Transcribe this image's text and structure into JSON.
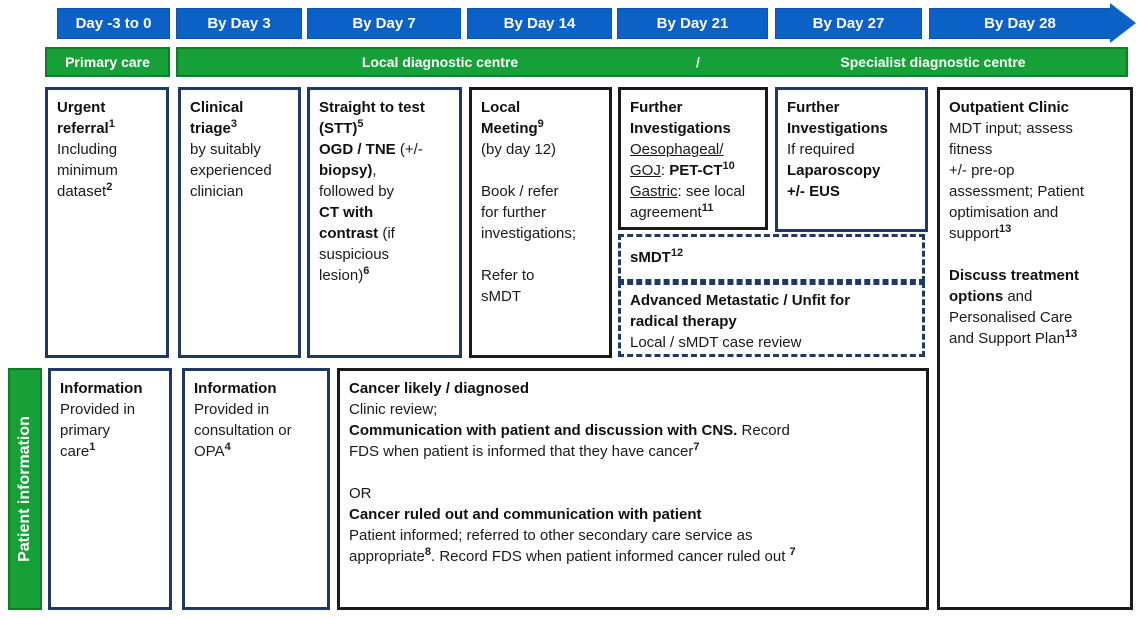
{
  "colors": {
    "timeline_blue": "#0b61c6",
    "setting_green": "#18a038",
    "navy_border": "#1f3864",
    "black_border": "#1a1a1a"
  },
  "timeline": {
    "days": [
      "Day -3 to 0",
      "By Day 3",
      "By Day 7",
      "By Day 14",
      "By Day 21",
      "By Day 27",
      "By Day 28"
    ]
  },
  "settings": {
    "primary": "Primary care",
    "local": "Local diagnostic centre",
    "slash": "/",
    "specialist": "Specialist diagnostic centre"
  },
  "patient_information_label": "Patient information",
  "boxes": {
    "urgent_referral": {
      "segments": [
        {
          "t": "Urgent\nreferral",
          "b": true
        },
        {
          "t": "1",
          "sup": true
        },
        {
          "t": "\nIncluding\nminimum\ndataset"
        },
        {
          "t": "2",
          "sup": true
        }
      ]
    },
    "clinical_triage": {
      "segments": [
        {
          "t": "Clinical\ntriage",
          "b": true
        },
        {
          "t": "3",
          "sup": true
        },
        {
          "t": "\nby suitably\nexperienced\nclinician"
        }
      ]
    },
    "straight_to_test": {
      "segments": [
        {
          "t": "Straight to test\n(STT)",
          "b": true
        },
        {
          "t": "5",
          "sup": true
        },
        {
          "t": "\n"
        },
        {
          "t": "OGD / TNE",
          "b": true
        },
        {
          "t": " (+/-\n"
        },
        {
          "t": "biopsy)",
          "b": true
        },
        {
          "t": ",\nfollowed by\n"
        },
        {
          "t": "CT with\ncontrast",
          "b": true
        },
        {
          "t": " (if\nsuspicious\nlesion)"
        },
        {
          "t": "6",
          "sup": true
        }
      ]
    },
    "local_meeting": {
      "segments": [
        {
          "t": "Local\nMeeting",
          "b": true
        },
        {
          "t": "9",
          "sup": true
        },
        {
          "t": "\n(by day 12)\n\nBook / refer\nfor further\ninvestigations;\n\nRefer to\nsMDT"
        }
      ]
    },
    "further_investigations_og": {
      "segments": [
        {
          "t": "Further\nInvestigations",
          "b": true
        },
        {
          "t": "\n"
        },
        {
          "t": "Oesophageal/",
          "u": true
        },
        {
          "t": "\n"
        },
        {
          "t": "GOJ",
          "u": true
        },
        {
          "t": ": "
        },
        {
          "t": "PET-CT",
          "b": true
        },
        {
          "t": "10",
          "sup": true
        },
        {
          "t": "\n"
        },
        {
          "t": "Gastric",
          "u": true
        },
        {
          "t": ": see local\nagreement"
        },
        {
          "t": "11",
          "sup": true
        }
      ]
    },
    "further_investigations_lap": {
      "segments": [
        {
          "t": "Further\nInvestigations",
          "b": true
        },
        {
          "t": "\nIf required\n"
        },
        {
          "t": "Laparoscopy\n+/- EUS",
          "b": true
        }
      ]
    },
    "smdt": {
      "segments": [
        {
          "t": "sMDT",
          "b": true
        },
        {
          "t": "12",
          "sup": true
        }
      ]
    },
    "advanced_metastatic": {
      "segments": [
        {
          "t": "Advanced Metastatic / Unfit for\nradical therapy",
          "b": true
        },
        {
          "t": "\nLocal / sMDT case review"
        }
      ]
    },
    "outpatient_clinic": {
      "segments": [
        {
          "t": "Outpatient Clinic",
          "b": true
        },
        {
          "t": "\nMDT input; assess\nfitness\n+/- pre-op\nassessment; Patient\noptimisation and\nsupport"
        },
        {
          "t": "13",
          "sup": true
        },
        {
          "t": "\n\n"
        },
        {
          "t": "Discuss treatment\noptions",
          "b": true
        },
        {
          "t": " and\nPersonalised Care\nand Support Plan"
        },
        {
          "t": "13",
          "sup": true
        }
      ]
    },
    "information_primary": {
      "segments": [
        {
          "t": "Information",
          "b": true
        },
        {
          "t": "\nProvided in\nprimary\ncare"
        },
        {
          "t": "1",
          "sup": true
        }
      ]
    },
    "information_opa": {
      "segments": [
        {
          "t": "Information",
          "b": true
        },
        {
          "t": "\nProvided in\nconsultation or\nOPA"
        },
        {
          "t": "4",
          "sup": true
        }
      ]
    },
    "cancer_communication": {
      "segments": [
        {
          "t": "Cancer likely / diagnosed",
          "b": true
        },
        {
          "t": "\nClinic review;\n"
        },
        {
          "t": "Communication with patient and discussion with CNS.",
          "b": true
        },
        {
          "t": " Record\nFDS when patient is informed that they have cancer"
        },
        {
          "t": "7",
          "sup": true
        },
        {
          "t": "\n\nOR\n"
        },
        {
          "t": "Cancer ruled out and communication with patient",
          "b": true
        },
        {
          "t": "\nPatient informed; referred to other secondary care service as\nappropriate"
        },
        {
          "t": "8",
          "sup": true
        },
        {
          "t": ". Record FDS when patient informed cancer ruled out "
        },
        {
          "t": "7",
          "sup": true
        }
      ]
    }
  }
}
